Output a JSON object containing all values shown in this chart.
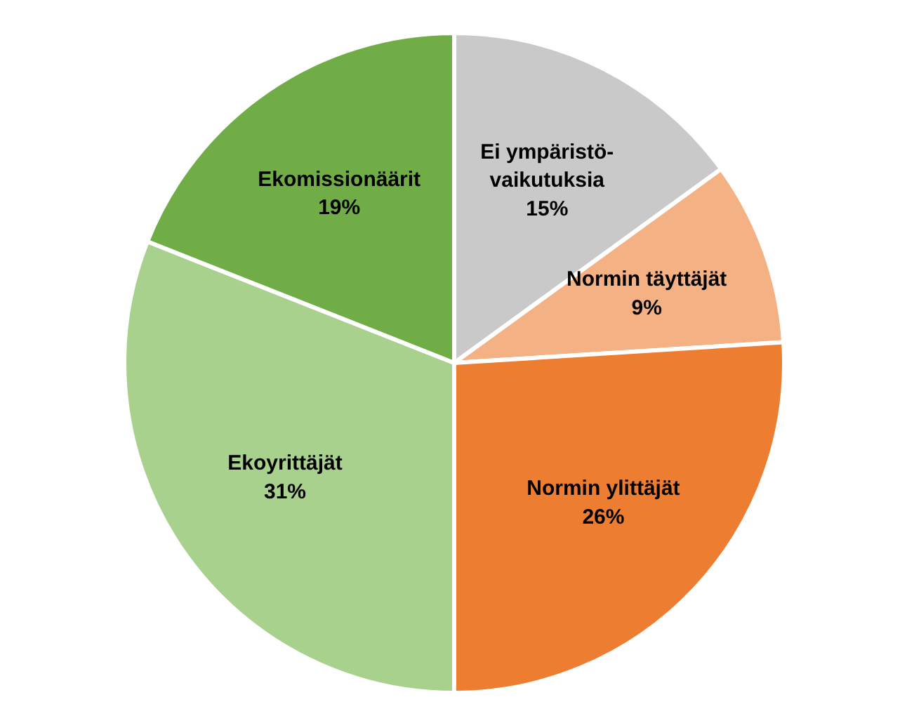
{
  "chart_data": {
    "type": "pie",
    "categories": [
      "Ei ympäristö-vaikutuksia",
      "Normin täyttäjät",
      "Normin ylittäjät",
      "Ekoyrittäjät",
      "Ekomissionäärit"
    ],
    "values": [
      15,
      9,
      26,
      31,
      19
    ],
    "colors": [
      "#c9c9c9",
      "#f4b183",
      "#ed7d31",
      "#a9d18e",
      "#70ad47"
    ],
    "value_labels": [
      "15%",
      "9%",
      "26%",
      "31%",
      "19%"
    ]
  }
}
